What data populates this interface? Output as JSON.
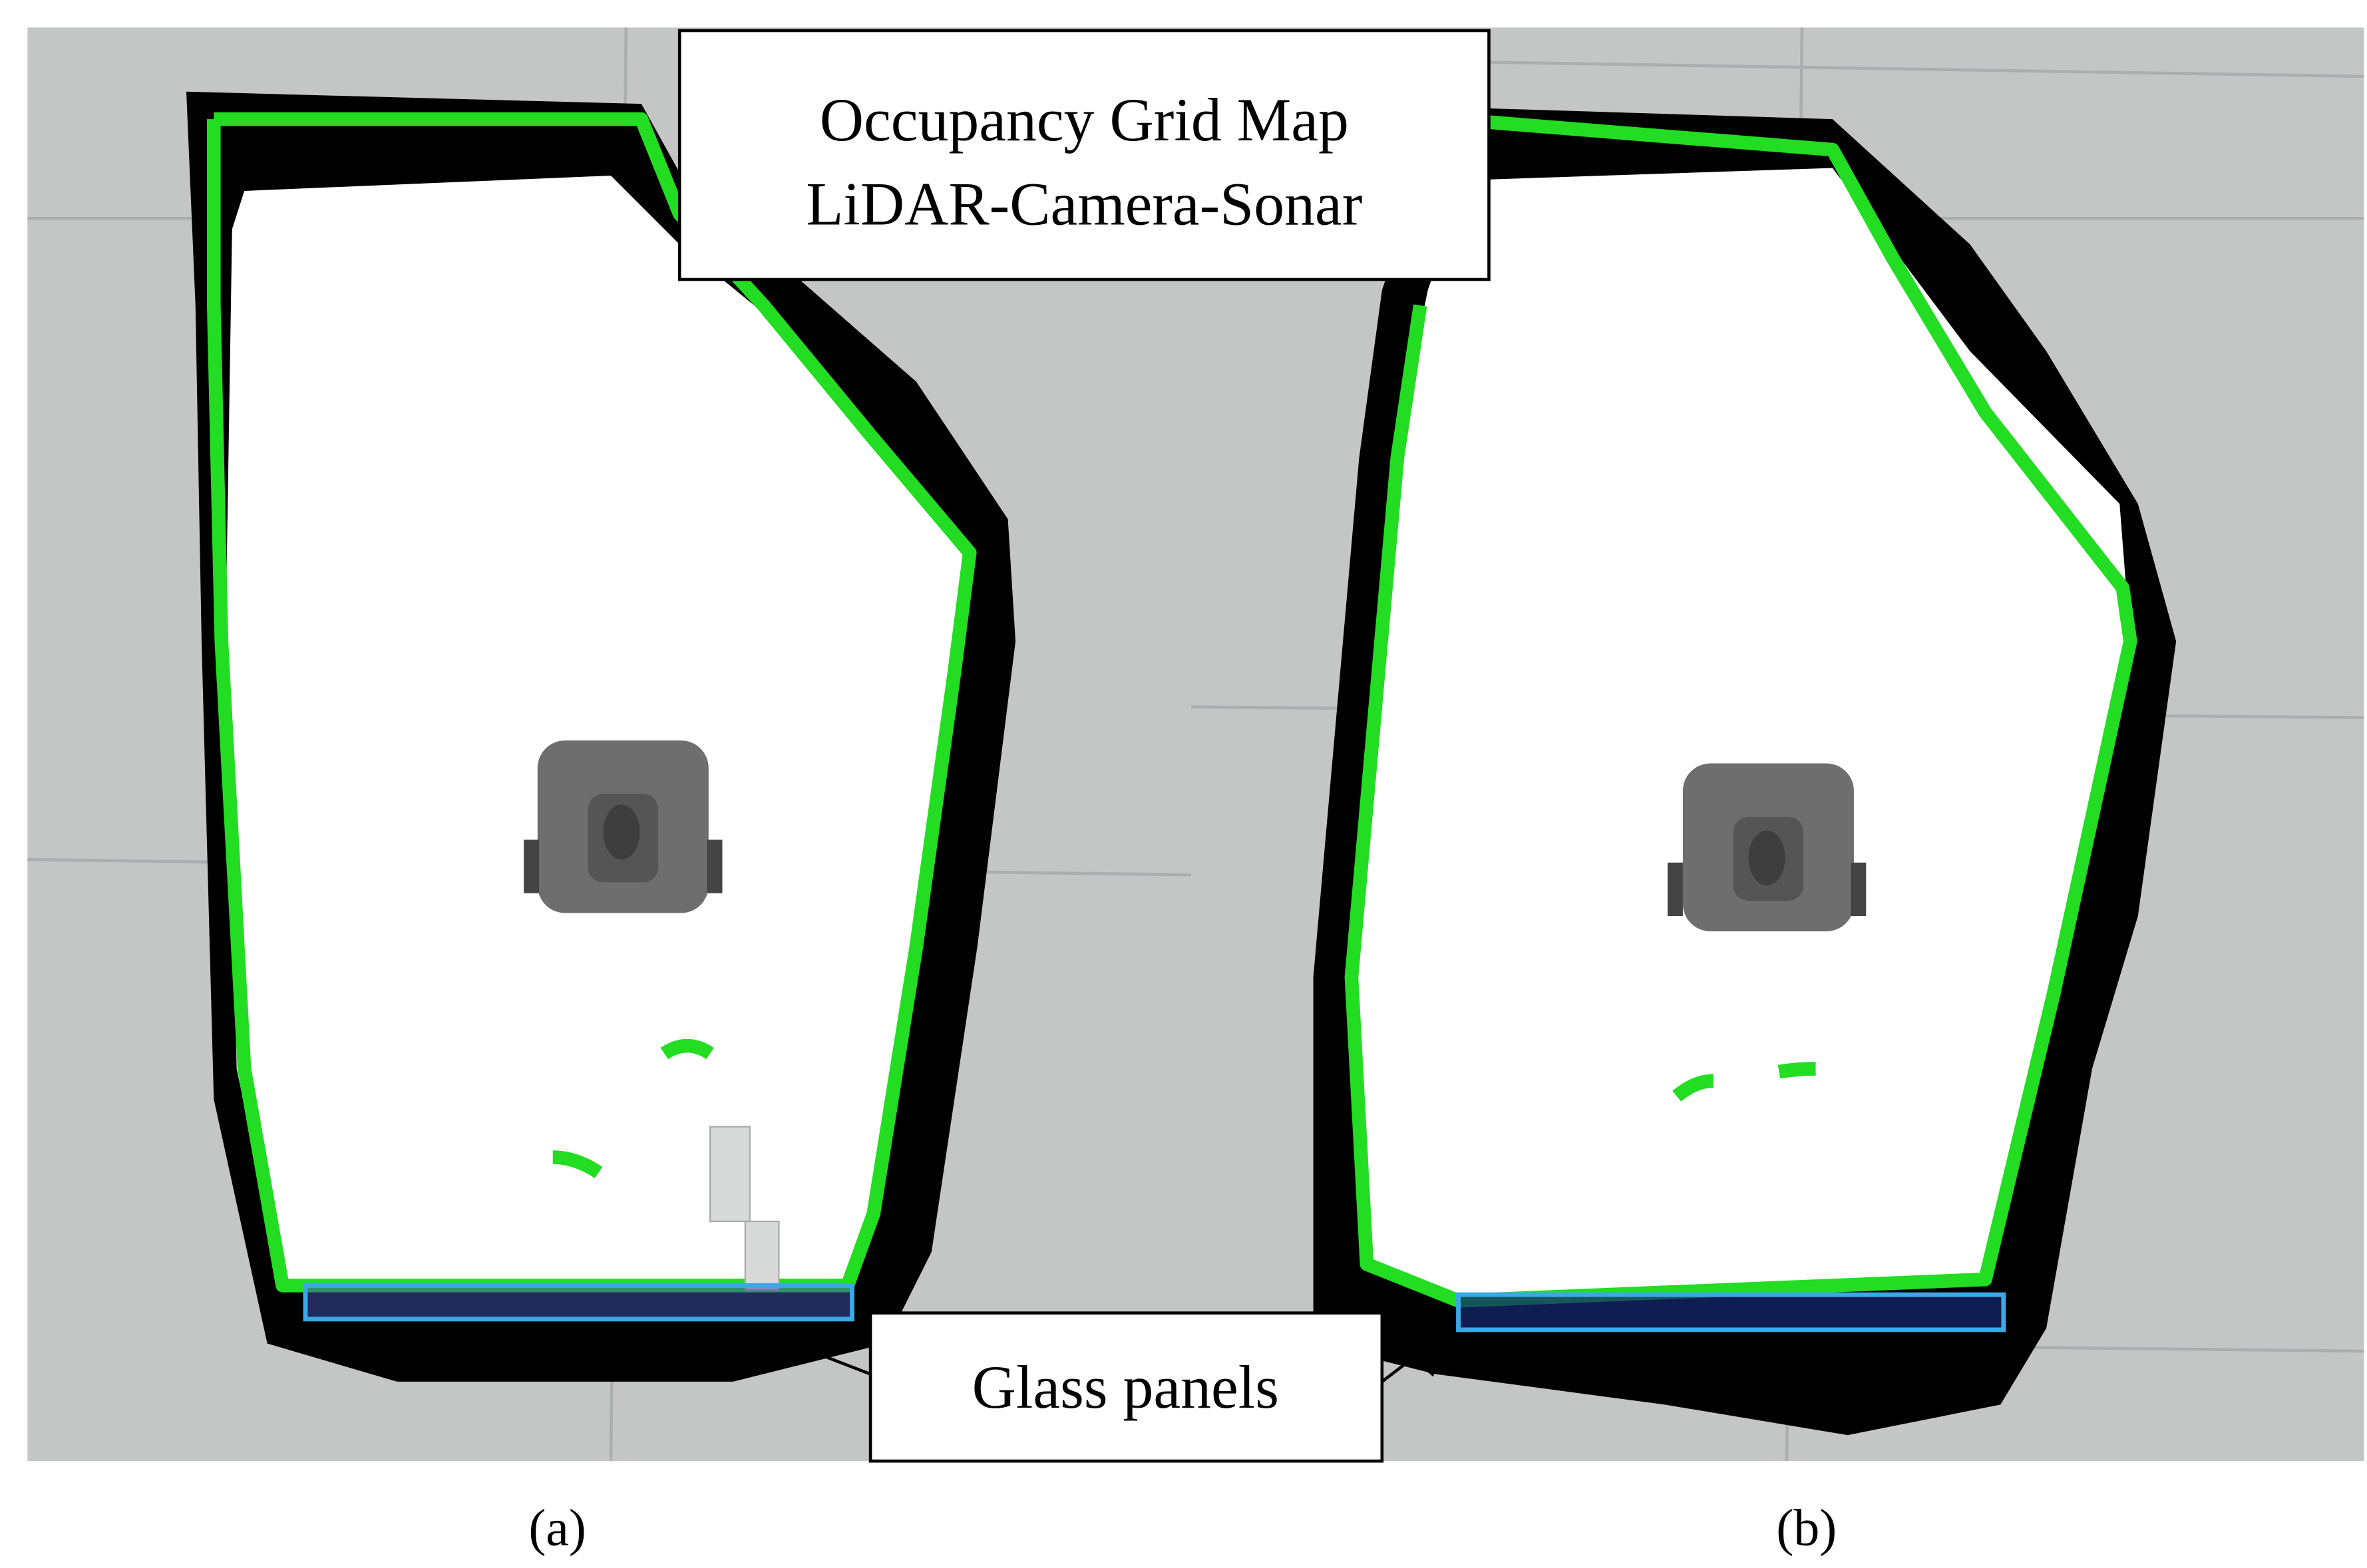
{
  "callouts": {
    "top": {
      "line1": "Occupancy Grid Map",
      "line2": "LiDAR-Camera-Sonar"
    },
    "bottom": "Glass panels"
  },
  "panels": [
    {
      "label": "(a)"
    },
    {
      "label": "(b)"
    }
  ]
}
